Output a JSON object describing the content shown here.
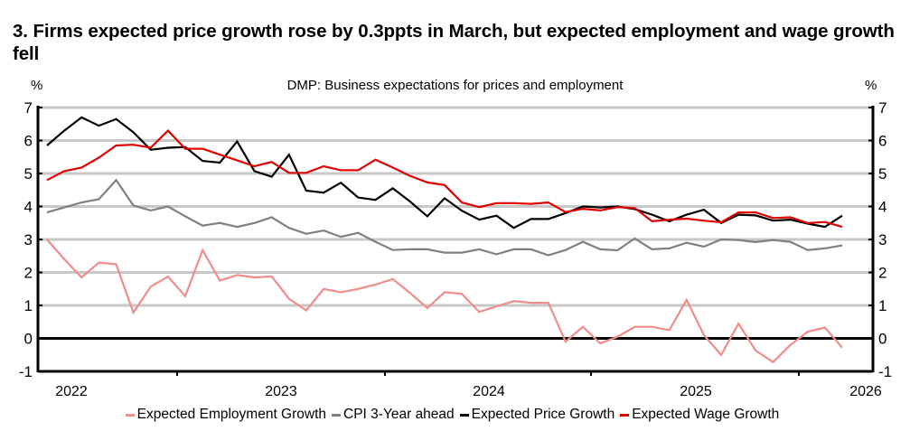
{
  "header": {
    "title": "3. Firms expected price growth rose by 0.3ppts in March, but expected employment and wage growth fell"
  },
  "chart_data": {
    "type": "line",
    "title": "3. Firms expected price growth rose by 0.3ppts in March, but expected employment and wage growth fell",
    "subtitle": "DMP: Business expectations for prices and employment",
    "ylabel_left": "%",
    "ylabel_right": "%",
    "xlabel": "",
    "ylim": [
      -1,
      7
    ],
    "yticks": [
      -1,
      0,
      1,
      2,
      3,
      4,
      5,
      6,
      7
    ],
    "ytick_labels": [
      "-1",
      "0",
      "1",
      "2",
      "3",
      "4",
      "5",
      "6",
      "7"
    ],
    "xtick_labels": [
      "2022",
      "2023",
      "2024",
      "2025",
      "2026"
    ],
    "x_frequency": "monthly",
    "x_points": 47,
    "grid": true,
    "legend_position": "bottom",
    "series": [
      {
        "name": "Expected Employment Growth",
        "color": "#F08C8C",
        "values": [
          3.0,
          2.4,
          1.85,
          2.3,
          2.25,
          0.78,
          1.57,
          1.87,
          1.28,
          2.68,
          1.75,
          1.92,
          1.85,
          1.88,
          1.2,
          0.85,
          1.5,
          1.4,
          1.5,
          1.63,
          1.8,
          1.38,
          0.92,
          1.4,
          1.35,
          0.8,
          0.97,
          1.13,
          1.08,
          1.08,
          -0.1,
          0.35,
          -0.15,
          0.05,
          0.35,
          0.35,
          0.25,
          1.17,
          0.1,
          -0.5,
          0.45,
          -0.37,
          -0.72,
          -0.2,
          0.2,
          0.33,
          -0.28
        ]
      },
      {
        "name": "CPI 3-Year ahead",
        "color": "#808080",
        "values": [
          3.82,
          3.97,
          4.12,
          4.22,
          4.8,
          4.03,
          3.88,
          4.0,
          3.7,
          3.42,
          3.5,
          3.38,
          3.5,
          3.67,
          3.35,
          3.17,
          3.27,
          3.08,
          3.2,
          2.93,
          2.68,
          2.7,
          2.7,
          2.6,
          2.6,
          2.7,
          2.55,
          2.7,
          2.7,
          2.52,
          2.68,
          2.93,
          2.7,
          2.67,
          3.03,
          2.7,
          2.73,
          2.9,
          2.78,
          3.0,
          2.98,
          2.92,
          2.98,
          2.93,
          2.68,
          2.73,
          2.82
        ]
      },
      {
        "name": "Expected Price Growth",
        "color": "#000000",
        "values": [
          5.85,
          6.3,
          6.7,
          6.45,
          6.65,
          6.25,
          5.72,
          5.78,
          5.8,
          5.38,
          5.33,
          5.97,
          5.07,
          4.9,
          5.57,
          4.48,
          4.42,
          4.72,
          4.27,
          4.2,
          4.55,
          4.15,
          3.7,
          4.25,
          3.87,
          3.6,
          3.72,
          3.35,
          3.62,
          3.62,
          3.8,
          4.0,
          3.97,
          4.0,
          3.92,
          3.75,
          3.55,
          3.75,
          3.9,
          3.5,
          3.75,
          3.73,
          3.57,
          3.6,
          3.48,
          3.38,
          3.72
        ]
      },
      {
        "name": "Expected Wage Growth",
        "color": "#E00000",
        "values": [
          4.8,
          5.07,
          5.18,
          5.48,
          5.85,
          5.87,
          5.78,
          6.3,
          5.75,
          5.75,
          5.57,
          5.4,
          5.22,
          5.35,
          5.02,
          5.02,
          5.22,
          5.1,
          5.1,
          5.42,
          5.18,
          4.93,
          4.73,
          4.65,
          4.12,
          3.98,
          4.1,
          4.1,
          4.08,
          4.12,
          3.83,
          3.93,
          3.88,
          3.98,
          3.95,
          3.55,
          3.6,
          3.63,
          3.57,
          3.52,
          3.82,
          3.82,
          3.65,
          3.67,
          3.5,
          3.53,
          3.38
        ]
      }
    ]
  }
}
